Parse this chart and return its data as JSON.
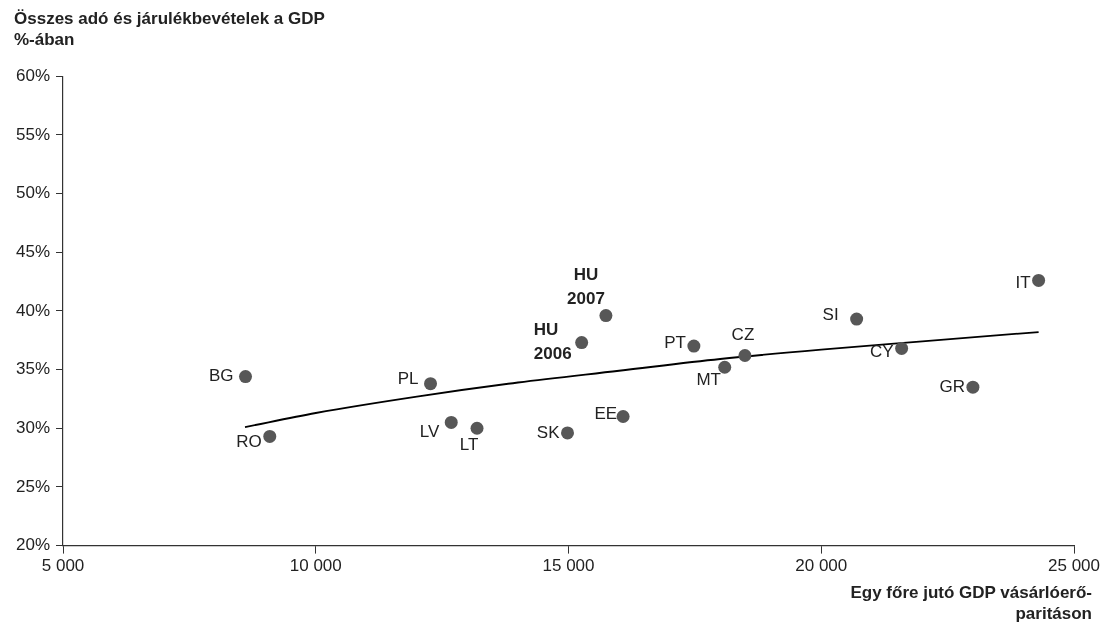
{
  "chart_data": {
    "type": "scatter",
    "ylabel": "Összes adó és járulékbevételek a GDP %-ában",
    "xlabel": "Egy főre jutó GDP vásárlóerő-paritáson",
    "xlim": [
      5000,
      25000
    ],
    "xticks": [
      {
        "value": 5000,
        "label": "5 000"
      },
      {
        "value": 10000,
        "label": "10 000"
      },
      {
        "value": 15000,
        "label": "15 000"
      },
      {
        "value": 20000,
        "label": "20 000"
      },
      {
        "value": 25000,
        "label": "25 000"
      }
    ],
    "ylim": [
      20,
      60
    ],
    "yticks": [
      {
        "value": 20,
        "label": "20%"
      },
      {
        "value": 25,
        "label": "25%"
      },
      {
        "value": 30,
        "label": "30%"
      },
      {
        "value": 35,
        "label": "35%"
      },
      {
        "value": 40,
        "label": "40%"
      },
      {
        "value": 45,
        "label": "45%"
      },
      {
        "value": 50,
        "label": "50%"
      },
      {
        "value": 55,
        "label": "55%"
      },
      {
        "value": 60,
        "label": "60%"
      }
    ],
    "grid": false,
    "legend": false,
    "marker": "circle",
    "series": [
      {
        "type": "scatter",
        "color": "#575757",
        "x": [
          8610,
          9090,
          12270,
          12680,
          13190,
          14980,
          16080,
          15260,
          15740,
          17480,
          18090,
          18490,
          20700,
          21590,
          23000,
          24300
        ],
        "values": [
          34.4,
          29.3,
          33.8,
          30.5,
          30.0,
          29.6,
          31.0,
          37.3,
          39.6,
          37.0,
          35.2,
          36.2,
          39.3,
          36.8,
          33.5,
          42.6
        ]
      },
      {
        "type": "line",
        "color": "#000000",
        "line_style": "solid",
        "marker": "none",
        "x": [
          8600,
          10000,
          12000,
          14000,
          16000,
          18000,
          20000,
          22000,
          24300
        ],
        "values": [
          30.1,
          31.3,
          32.7,
          33.9,
          34.9,
          35.9,
          36.7,
          37.4,
          38.2
        ]
      }
    ],
    "annotations": [
      {
        "text": "BG",
        "x": 8610,
        "y": 34.4
      },
      {
        "text": "RO",
        "x": 9090,
        "y": 29.3
      },
      {
        "text": "PL",
        "x": 12270,
        "y": 33.8
      },
      {
        "text": "LV",
        "x": 12680,
        "y": 30.5
      },
      {
        "text": "LT",
        "x": 13190,
        "y": 30.0
      },
      {
        "text": "SK",
        "x": 14980,
        "y": 29.6
      },
      {
        "text": "EE",
        "x": 16080,
        "y": 31.0
      },
      {
        "text": "HU 2006",
        "x": 15260,
        "y": 37.3
      },
      {
        "text": "HU 2007",
        "x": 15740,
        "y": 39.6
      },
      {
        "text": "PT",
        "x": 17480,
        "y": 37.0
      },
      {
        "text": "MT",
        "x": 18090,
        "y": 35.2
      },
      {
        "text": "CZ",
        "x": 18490,
        "y": 36.2
      },
      {
        "text": "SI",
        "x": 20700,
        "y": 39.3
      },
      {
        "text": "CY",
        "x": 21590,
        "y": 36.8
      },
      {
        "text": "GR",
        "x": 23000,
        "y": 33.5
      },
      {
        "text": "IT",
        "x": 24300,
        "y": 42.6
      }
    ]
  }
}
